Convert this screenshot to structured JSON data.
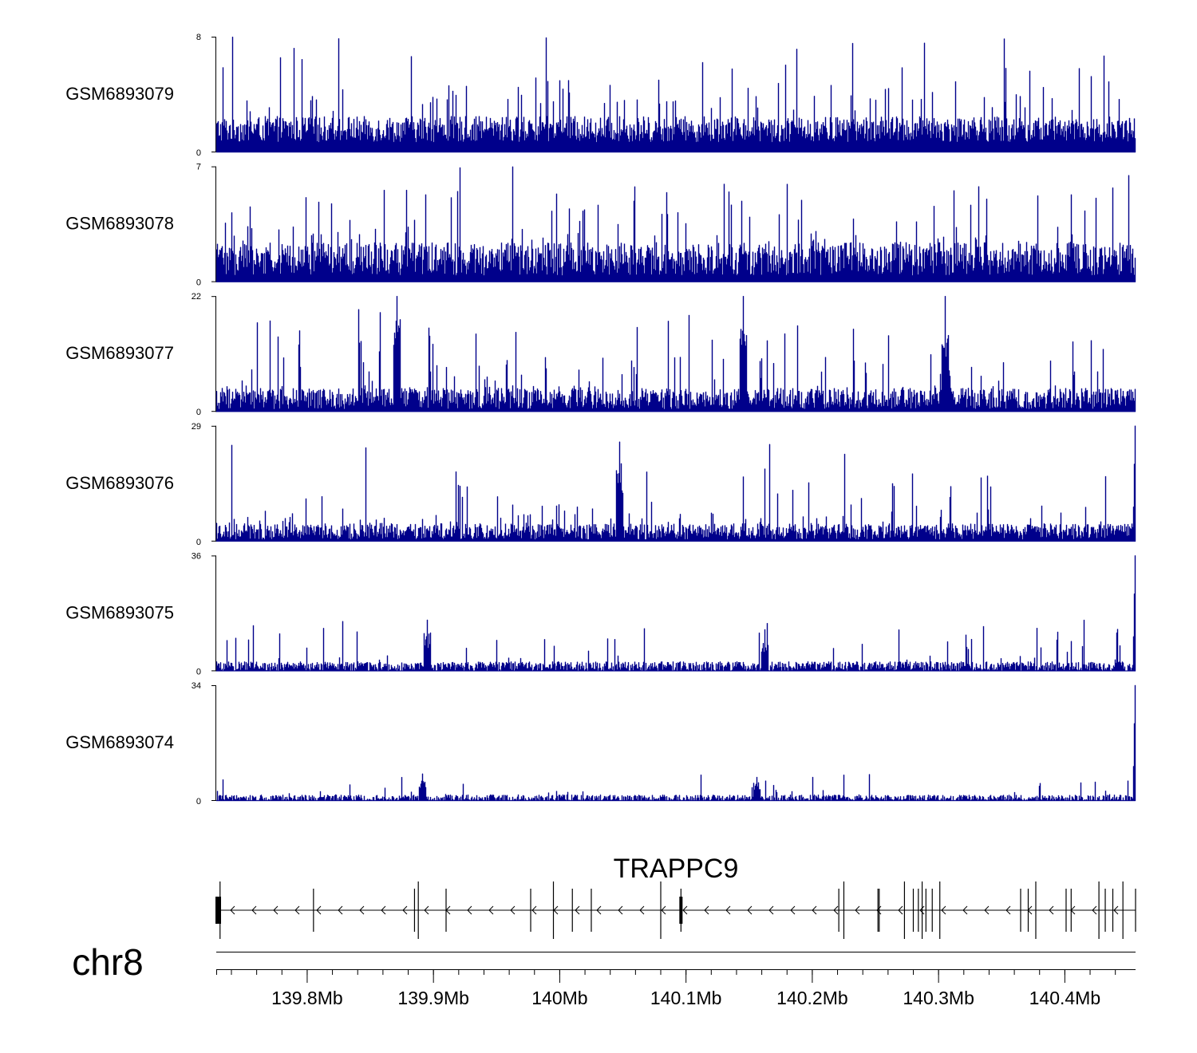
{
  "chart_data": {
    "type": "area",
    "title": "",
    "chromosome": "chr8",
    "region_mb": [
      139.728,
      140.456
    ],
    "bar_color": "#00008B",
    "tracks": [
      {
        "name": "GSM6893079",
        "ymax": 8,
        "ymax_label": "8",
        "ymin_label": "0",
        "baseline": 1.6,
        "noise": 0.9,
        "levels": [
          2,
          4,
          5,
          6,
          8
        ],
        "spike_rate": 0.14
      },
      {
        "name": "GSM6893078",
        "ymax": 7,
        "ymax_label": "7",
        "ymin_label": "0",
        "baseline": 1.4,
        "noise": 1.0,
        "levels": [
          2,
          3,
          4,
          5,
          6,
          7
        ],
        "spike_rate": 0.17
      },
      {
        "name": "GSM6893077",
        "ymax": 22,
        "ymax_label": "22",
        "ymin_label": "0",
        "baseline": 2.5,
        "noise": 2.0,
        "levels": [
          5,
          8,
          10,
          12,
          15,
          18,
          22
        ],
        "spike_rate": 0.12
      },
      {
        "name": "GSM6893076",
        "ymax": 29,
        "ymax_label": "29",
        "ymin_label": "0",
        "baseline": 2.5,
        "noise": 2.0,
        "levels": [
          5,
          7,
          8,
          10,
          12,
          15,
          18,
          25
        ],
        "spike_rate": 0.1
      },
      {
        "name": "GSM6893075",
        "ymax": 36,
        "ymax_label": "36",
        "ymin_label": "0",
        "baseline": 1.5,
        "noise": 1.5,
        "levels": [
          3,
          5,
          8,
          10,
          12,
          14,
          16
        ],
        "spike_rate": 0.08
      },
      {
        "name": "GSM6893074",
        "ymax": 34,
        "ymax_label": "34",
        "ymin_label": "0",
        "baseline": 0.8,
        "noise": 1.0,
        "levels": [
          2,
          3,
          4,
          6,
          8
        ],
        "spike_rate": 0.06
      }
    ],
    "end_peaks": {
      "GSM6893076": 29,
      "GSM6893075": 36,
      "GSM6893074": 34
    },
    "hotspots": [
      {
        "track": "GSM6893077",
        "pos_mb": 140.145,
        "value": 22
      },
      {
        "track": "GSM6893077",
        "pos_mb": 140.305,
        "value": 22
      },
      {
        "track": "GSM6893077",
        "pos_mb": 139.871,
        "value": 22
      },
      {
        "track": "GSM6893076",
        "pos_mb": 140.047,
        "value": 25
      },
      {
        "track": "GSM6893075",
        "pos_mb": 139.895,
        "value": 16
      },
      {
        "track": "GSM6893075",
        "pos_mb": 140.162,
        "value": 13
      },
      {
        "track": "GSM6893074",
        "pos_mb": 139.891,
        "value": 8
      },
      {
        "track": "GSM6893074",
        "pos_mb": 140.156,
        "value": 7
      }
    ],
    "gene": {
      "name": "TRAPPC9",
      "strand": "-",
      "start_mb": 139.728,
      "end_mb": 140.456,
      "exons_mb": [
        139.731,
        139.805,
        139.885,
        139.888,
        139.91,
        139.977,
        139.995,
        140.01,
        140.025,
        140.08,
        140.096,
        140.221,
        140.225,
        140.252,
        140.253,
        140.273,
        140.28,
        140.284,
        140.287,
        140.29,
        140.295,
        140.301,
        140.365,
        140.371,
        140.377,
        140.401,
        140.405,
        140.427,
        140.432,
        140.438,
        140.446,
        140.456
      ]
    },
    "xaxis": {
      "ticks_mb": [
        139.8,
        139.9,
        140.0,
        140.1,
        140.2,
        140.3,
        140.4
      ],
      "tick_labels": [
        "139.8Mb",
        "139.9Mb",
        "140Mb",
        "140.1Mb",
        "140.2Mb",
        "140.3Mb",
        "140.4Mb"
      ],
      "minor_step_mb": 0.02
    }
  }
}
